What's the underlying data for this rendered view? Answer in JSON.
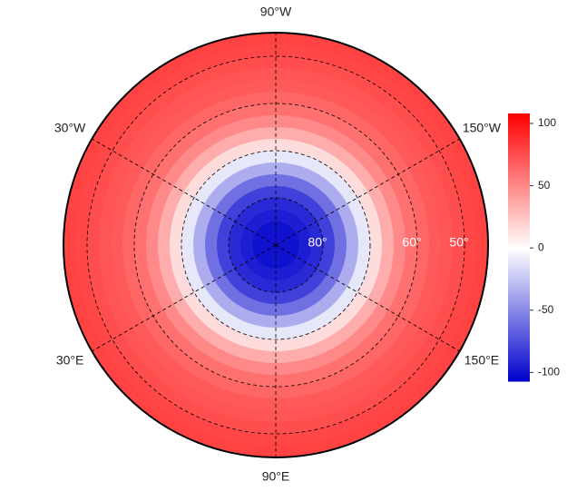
{
  "chart_data": {
    "type": "polar-map",
    "lonlabels": [
      {
        "value": -90,
        "label": "90°W"
      },
      {
        "value": -30,
        "label": "30°W"
      },
      {
        "value": -150,
        "label": "150°W"
      },
      {
        "value": 30,
        "label": "30°E"
      },
      {
        "value": 150,
        "label": "150°E"
      },
      {
        "value": 90,
        "label": "90°E"
      }
    ],
    "latlim": [
      45,
      90
    ],
    "latticks": [
      {
        "value": 80,
        "label": "80°"
      },
      {
        "value": 70,
        "label": null
      },
      {
        "value": 60,
        "label": "60°"
      },
      {
        "value": 50,
        "label": "50°"
      }
    ],
    "field": {
      "lat": [
        45,
        47.5,
        50,
        52.5,
        55,
        57.5,
        60,
        62.5,
        65,
        67.5,
        70,
        72.5,
        75,
        77.5,
        80,
        82.5,
        85,
        87.5
      ],
      "values": [
        80,
        78,
        75,
        72,
        70,
        65,
        60,
        50,
        35,
        15,
        -10,
        -35,
        -60,
        -80,
        -90,
        -95,
        -100,
        -100
      ]
    },
    "colors": [
      "#0000cd",
      "#ffffff",
      "#ff0000"
    ],
    "clim": [
      -107,
      108
    ],
    "cticks": [
      100,
      50,
      0,
      -50,
      -100
    ]
  }
}
